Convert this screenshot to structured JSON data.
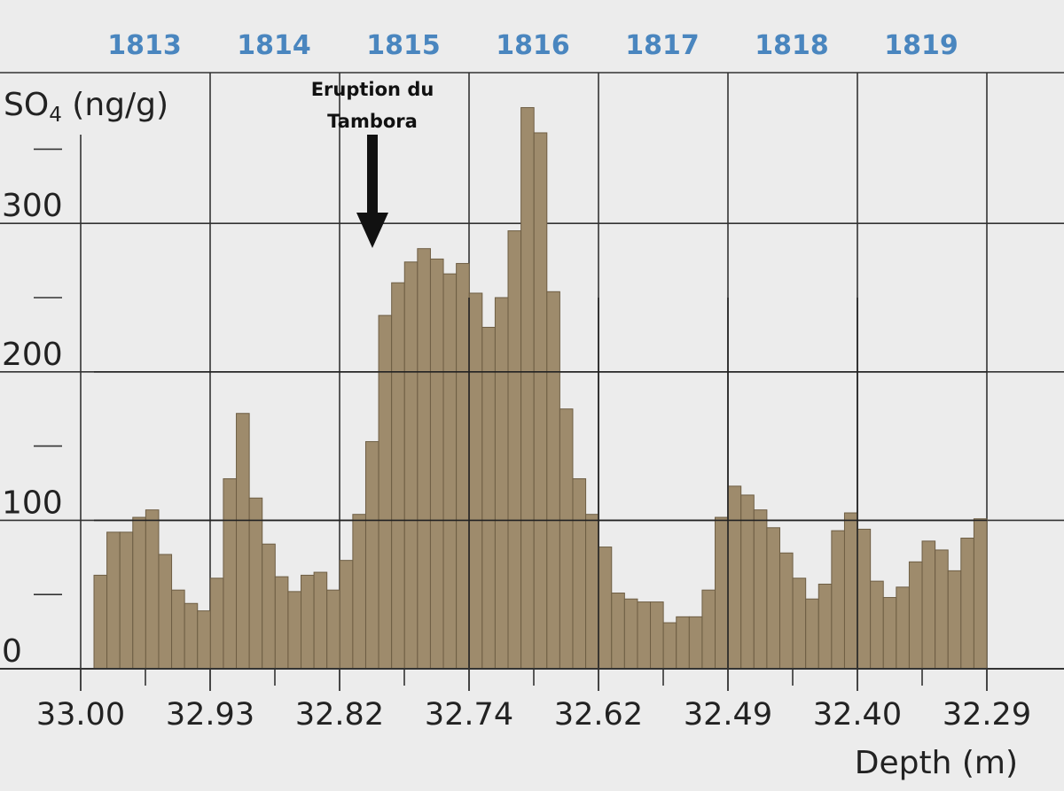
{
  "chart_data": {
    "type": "bar",
    "ylabel_main": "SO",
    "ylabel_sub": "4",
    "ylabel_unit": " (ng/g)",
    "xlabel": "Depth (m)",
    "ylim": [
      0,
      355
    ],
    "grid": true,
    "years": [
      "1813",
      "1814",
      "1815",
      "1816",
      "1817",
      "1818",
      "1819"
    ],
    "yticks": [
      "0",
      "100",
      "200",
      "300"
    ],
    "xticks": [
      "33.00",
      "32.93",
      "32.82",
      "32.74",
      "32.62",
      "32.49",
      "32.40",
      "32.29"
    ],
    "annotation": {
      "line1": "Eruption du",
      "line2": "Tambora"
    },
    "values": [
      63,
      92,
      92,
      102,
      107,
      77,
      53,
      44,
      39,
      61,
      128,
      172,
      115,
      84,
      62,
      52,
      63,
      65,
      53,
      73,
      104,
      153,
      238,
      260,
      274,
      283,
      276,
      266,
      273,
      253,
      230,
      250,
      295,
      378,
      361,
      254,
      175,
      128,
      104,
      82,
      51,
      47,
      45,
      45,
      31,
      35,
      35,
      53,
      102,
      123,
      117,
      107,
      95,
      78,
      61,
      47,
      57,
      93,
      105,
      94,
      59,
      48,
      55,
      72,
      86,
      80,
      66,
      88,
      101
    ]
  }
}
